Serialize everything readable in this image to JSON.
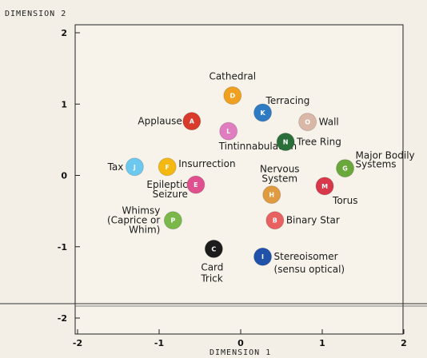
{
  "chart_data": {
    "type": "scatter",
    "xlabel": "DIMENSION 1",
    "ylabel": "DIMENSION 2",
    "xlim": [
      -2,
      2
    ],
    "ylim": [
      -2,
      2
    ],
    "x_ticks": [
      "-2",
      "-1",
      "0",
      "1",
      "2"
    ],
    "y_ticks": [
      "2",
      "1",
      "0",
      "-1",
      "-2"
    ],
    "grid": false,
    "points": [
      {
        "letter": "D",
        "label": "Cathedral",
        "x": -0.1,
        "y": 1.12,
        "color": "#f0a020"
      },
      {
        "letter": "K",
        "label": "Terracing",
        "x": 0.27,
        "y": 0.88,
        "color": "#2e7bc4"
      },
      {
        "letter": "A",
        "label": "Applause",
        "x": -0.6,
        "y": 0.76,
        "color": "#d83a2c"
      },
      {
        "letter": "O",
        "label": "Wall",
        "x": 0.82,
        "y": 0.75,
        "color": "#d9b8a8"
      },
      {
        "letter": "L",
        "label": "Tintinnabulation",
        "x": -0.15,
        "y": 0.62,
        "color": "#e07cc0"
      },
      {
        "letter": "N",
        "label": "Tree Ring",
        "x": 0.55,
        "y": 0.47,
        "color": "#2a6e3a"
      },
      {
        "letter": "J",
        "label": "Tax",
        "x": -1.3,
        "y": 0.12,
        "color": "#6cc8ee"
      },
      {
        "letter": "F",
        "label": "Insurrection",
        "x": -0.9,
        "y": 0.12,
        "color": "#f5b810"
      },
      {
        "letter": "G",
        "label": "Major Bodily Systems",
        "x": 1.28,
        "y": 0.1,
        "color": "#6aa83c"
      },
      {
        "letter": "E",
        "label": "Epileptic Seizure",
        "x": -0.55,
        "y": -0.13,
        "color": "#e0508e"
      },
      {
        "letter": "M",
        "label": "Torus",
        "x": 1.03,
        "y": -0.15,
        "color": "#d8384a"
      },
      {
        "letter": "H",
        "label": "Nervous System",
        "x": 0.38,
        "y": -0.27,
        "color": "#e09a40"
      },
      {
        "letter": "B",
        "label": "Binary Star",
        "x": 0.42,
        "y": -0.63,
        "color": "#e86060"
      },
      {
        "letter": "P",
        "label": "Whimsy (Caprice or Whim)",
        "x": -0.83,
        "y": -0.63,
        "color": "#7ab84a"
      },
      {
        "letter": "C",
        "label": "Card Trick",
        "x": -0.33,
        "y": -1.03,
        "color": "#1c1c1c"
      },
      {
        "letter": "I",
        "label": "Stereoisomer (sensu optical)",
        "x": 0.27,
        "y": -1.14,
        "color": "#1f52a8"
      }
    ]
  }
}
